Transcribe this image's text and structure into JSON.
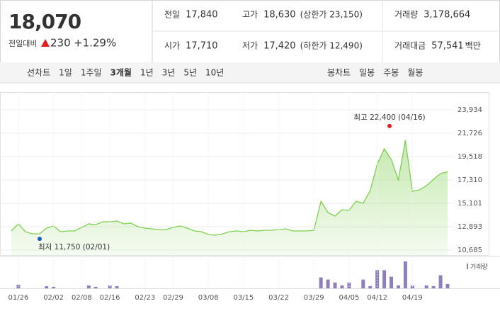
{
  "quote": {
    "price": "18,070",
    "change_label": "전일대비",
    "change": "230",
    "change_pct": "+1.29%"
  },
  "stats": [
    [
      {
        "label": "전일",
        "value": "17,840"
      },
      {
        "label": "고가",
        "value": "18,630",
        "color": "#e01f1f",
        "extra": "(상한가 23,150)"
      },
      {
        "label": "거래량",
        "value": "3,178,664"
      }
    ],
    [
      {
        "label": "시가",
        "value": "17,710",
        "color": "#1a5bc6"
      },
      {
        "label": "저가",
        "value": "17,420",
        "color": "#1a5bc6",
        "extra": "(하한가 12,490)"
      },
      {
        "label": "거래대금",
        "value": "57,541",
        "unit": "백만"
      }
    ]
  ],
  "tabs": {
    "line_label": "선차트",
    "periods": [
      "1일",
      "1주일",
      "3개월",
      "1년",
      "3년",
      "5년",
      "10년"
    ],
    "selected": "3개월",
    "candle_label": "봉차트",
    "candles": [
      "일봉",
      "주봉",
      "월봉"
    ]
  },
  "chart_data": [
    {
      "type": "line",
      "color": "#7fcf4f",
      "categories": [
        null,
        "01/26",
        null,
        null,
        null,
        null,
        "02/02",
        null,
        null,
        null,
        "02/08",
        null,
        null,
        null,
        "02/16",
        null,
        null,
        null,
        null,
        "02/23",
        null,
        null,
        null,
        "02/29",
        null,
        null,
        null,
        null,
        "03/08",
        null,
        null,
        null,
        null,
        "03/15",
        null,
        null,
        null,
        null,
        "03/22",
        null,
        null,
        null,
        null,
        "03/29",
        null,
        null,
        null,
        null,
        "04/05",
        null,
        null,
        null,
        "04/12",
        null,
        null,
        null,
        null,
        "04/19",
        null,
        null,
        null,
        null,
        null
      ],
      "values": [
        12490,
        13160,
        12420,
        12220,
        12220,
        12760,
        12960,
        12420,
        12490,
        12490,
        12830,
        13160,
        13090,
        13360,
        13360,
        13430,
        13160,
        13230,
        12890,
        12760,
        12690,
        12620,
        12620,
        12830,
        12960,
        12760,
        12490,
        12420,
        12160,
        12090,
        12220,
        12420,
        12490,
        12420,
        12560,
        12490,
        12560,
        12560,
        12620,
        12690,
        12490,
        12490,
        12490,
        12560,
        15300,
        14230,
        13900,
        14500,
        14430,
        15300,
        15100,
        16300,
        18780,
        20250,
        19250,
        17310,
        21060,
        16240,
        16370,
        16770,
        17370,
        17910,
        18070
      ],
      "ylim": [
        10685,
        23934
      ],
      "yticks": [
        {
          "value": 23934,
          "label": "23,934"
        },
        {
          "value": 21726,
          "label": "21,726"
        },
        {
          "value": 19518,
          "label": "19,518"
        },
        {
          "value": 17310,
          "label": "17,310"
        },
        {
          "value": 15101,
          "label": "15,101"
        },
        {
          "value": 12893,
          "label": "12,893"
        },
        {
          "value": 10685,
          "label": "10,685"
        }
      ],
      "grid": true,
      "annotations": [
        {
          "text": "최고 22,400 (04/16)",
          "value": 22400,
          "color": "#e01f1f"
        },
        {
          "text": "최저 11,750 (02/01)",
          "value": 11750,
          "color": "#1a5bc6"
        }
      ]
    },
    {
      "type": "bar",
      "label": "거래량",
      "color": "#8f7fbf",
      "values": [
        0,
        5,
        0,
        0,
        0,
        3,
        2,
        0,
        0,
        0,
        0,
        4,
        2,
        0,
        4,
        3,
        0,
        0,
        0,
        0,
        0,
        0,
        0,
        0,
        0,
        0,
        0,
        0,
        0,
        0,
        0,
        0,
        0,
        0,
        0,
        0,
        0,
        0,
        0,
        0,
        0,
        0,
        0,
        0,
        15,
        12,
        8,
        4,
        8,
        0,
        12,
        3,
        25,
        25,
        16,
        4,
        37,
        4,
        0,
        4,
        3,
        18,
        6
      ],
      "ylim": [
        0,
        40
      ]
    }
  ]
}
